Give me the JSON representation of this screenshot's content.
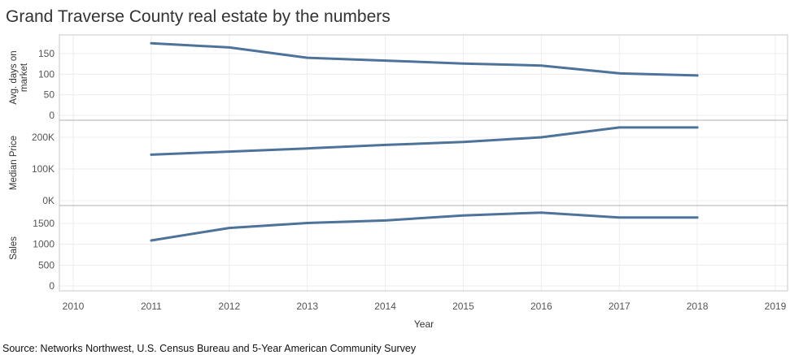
{
  "page": {
    "title": "Grand Traverse County real estate by the numbers",
    "source": "Source: Networks Northwest, U.S. Census Bureau and 5-Year American Community Survey"
  },
  "colors": {
    "line": "#4e739a",
    "grid": "#ececec",
    "frame": "#c8c8c8"
  },
  "chart_data": [
    {
      "type": "line",
      "title": "Grand Traverse County real estate by the numbers",
      "ylabel": "Avg. days on market",
      "ylabel_lines": [
        "Avg. days on",
        "market"
      ],
      "xlabel": "Year",
      "xlim": [
        2010,
        2019
      ],
      "ylim": [
        0,
        180
      ],
      "yticks": [
        0,
        50,
        100,
        150
      ],
      "ytick_labels": [
        "0",
        "50",
        "100",
        "150"
      ],
      "x": [
        2011,
        2012,
        2013,
        2014,
        2015,
        2016,
        2017,
        2018
      ],
      "values": [
        175,
        165,
        140,
        133,
        126,
        121,
        102,
        97
      ]
    },
    {
      "type": "line",
      "ylabel": "Median Price",
      "ylabel_lines": [
        "Median Price"
      ],
      "xlabel": "Year",
      "xlim": [
        2010,
        2019
      ],
      "ylim": [
        0,
        245000
      ],
      "yticks": [
        0,
        100000,
        200000
      ],
      "ytick_labels": [
        "0K",
        "100K",
        "200K"
      ],
      "x": [
        2011,
        2012,
        2013,
        2014,
        2015,
        2016,
        2017,
        2018
      ],
      "values": [
        145000,
        155000,
        165000,
        176000,
        185000,
        200000,
        231000,
        231000
      ]
    },
    {
      "type": "line",
      "ylabel": "Sales",
      "ylabel_lines": [
        "Sales"
      ],
      "xlabel": "Year",
      "xlim": [
        2010,
        2019
      ],
      "ylim": [
        0,
        1800
      ],
      "yticks": [
        0,
        500,
        1000,
        1500
      ],
      "ytick_labels": [
        "0",
        "500",
        "1000",
        "1500"
      ],
      "x": [
        2011,
        2012,
        2013,
        2014,
        2015,
        2016,
        2017,
        2018
      ],
      "values": [
        1090,
        1390,
        1510,
        1570,
        1690,
        1760,
        1640,
        1640
      ]
    }
  ],
  "xaxis": {
    "title": "Year",
    "ticks": [
      2010,
      2011,
      2012,
      2013,
      2014,
      2015,
      2016,
      2017,
      2018,
      2019
    ],
    "tick_labels": [
      "2010",
      "2011",
      "2012",
      "2013",
      "2014",
      "2015",
      "2016",
      "2017",
      "2018",
      "2019"
    ]
  }
}
